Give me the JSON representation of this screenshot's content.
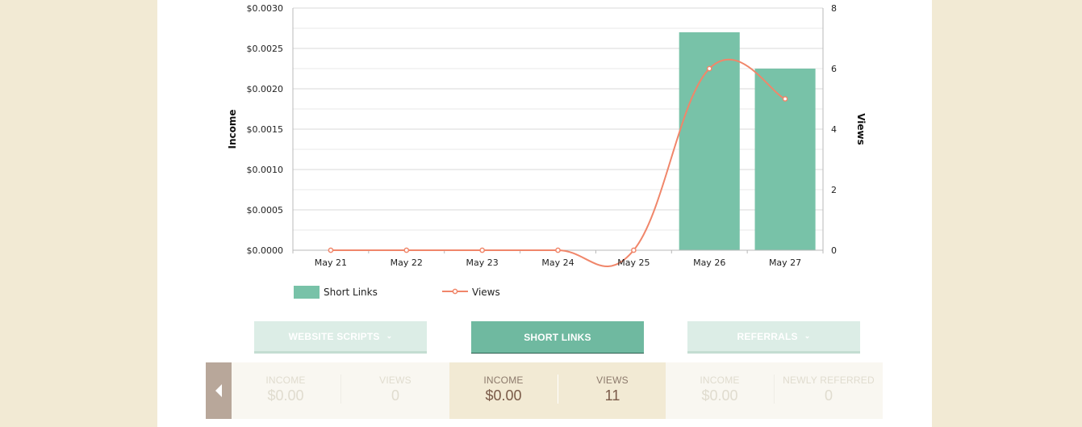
{
  "chart_data": {
    "type": "bar",
    "categories": [
      "May 21",
      "May 22",
      "May 23",
      "May 24",
      "May 25",
      "May 26",
      "May 27"
    ],
    "series": [
      {
        "name": "Short Links",
        "type": "bar",
        "axis": "left",
        "values": [
          0,
          0,
          0,
          0,
          0,
          0.0027,
          0.00225
        ],
        "color": "#78c2a8"
      },
      {
        "name": "Views",
        "type": "line",
        "axis": "right",
        "values": [
          0,
          0,
          0,
          0,
          0,
          6,
          5
        ],
        "color": "#f0866a"
      }
    ],
    "ylabel": "Income",
    "y2label": "Views",
    "ylim": [
      0,
      0.003
    ],
    "y2lim": [
      0,
      8
    ],
    "yticks": [
      "$0.0000",
      "$0.0005",
      "$0.0010",
      "$0.0015",
      "$0.0020",
      "$0.0025",
      "$0.0030"
    ],
    "y2ticks": [
      "0",
      "2",
      "4",
      "6",
      "8"
    ],
    "grid": true,
    "legend": "bottom"
  },
  "tabs": [
    {
      "label": "Website Scripts",
      "active": false
    },
    {
      "label": "Short Links",
      "active": true
    },
    {
      "label": "Referrals",
      "active": false
    }
  ],
  "stats": {
    "groups": [
      {
        "cells": [
          {
            "label": "Income",
            "value": "$0.00"
          },
          {
            "label": "Views",
            "value": "0"
          }
        ]
      },
      {
        "cells": [
          {
            "label": "Income",
            "value": "$0.00"
          },
          {
            "label": "Views",
            "value": "11"
          }
        ]
      },
      {
        "cells": [
          {
            "label": "Income",
            "value": "$0.00"
          },
          {
            "label": "Newly Referred",
            "value": "0"
          }
        ]
      }
    ]
  },
  "icons": {
    "prev": "caret-left-icon",
    "dropdown": "chevron-down-icon"
  },
  "colors": {
    "background": "#f2ead4",
    "panel": "#ffffff",
    "accent": "#6fb9a0",
    "bar": "#78c2a8",
    "line": "#f0866a"
  }
}
